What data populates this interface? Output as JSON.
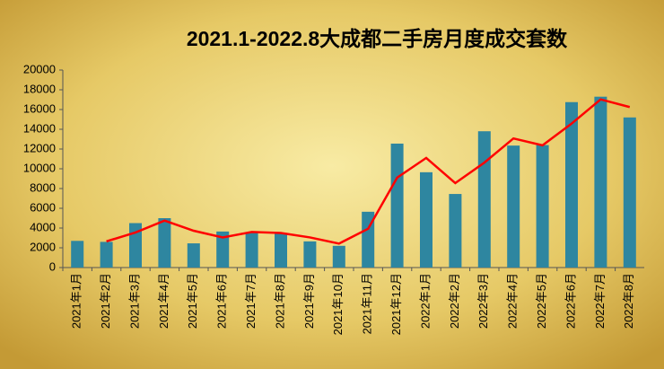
{
  "chart_data": {
    "type": "bar",
    "title": "2021.1-2022.8大成都二手房月度成交套数",
    "categories": [
      "2021年1月",
      "2021年2月",
      "2021年3月",
      "2021年4月",
      "2021年5月",
      "2021年6月",
      "2021年7月",
      "2021年8月",
      "2021年9月",
      "2021年10月",
      "2021年11月",
      "2021年12月",
      "2022年1月",
      "2022年2月",
      "2022年3月",
      "2022年4月",
      "2022年5月",
      "2022年6月",
      "2022年7月",
      "2022年8月"
    ],
    "series": [
      {
        "type": "bar",
        "color": "#2e86a0",
        "values": [
          2700,
          2600,
          4500,
          5000,
          2450,
          3650,
          3550,
          3450,
          2650,
          2200,
          5650,
          12550,
          9650,
          7450,
          13800,
          12350,
          12400,
          16750,
          17300,
          15200
        ]
      },
      {
        "type": "line",
        "color": "#ff0000",
        "values": [
          null,
          2650,
          3550,
          4750,
          3725,
          3050,
          3600,
          3500,
          3050,
          2425,
          3925,
          9100,
          11100,
          8550,
          10625,
          13075,
          12375,
          14575,
          17025,
          16250
        ]
      }
    ],
    "ylim": [
      0,
      20000
    ],
    "yticks": [
      0,
      2000,
      4000,
      6000,
      8000,
      10000,
      12000,
      14000,
      16000,
      18000,
      20000
    ],
    "grid": false
  }
}
